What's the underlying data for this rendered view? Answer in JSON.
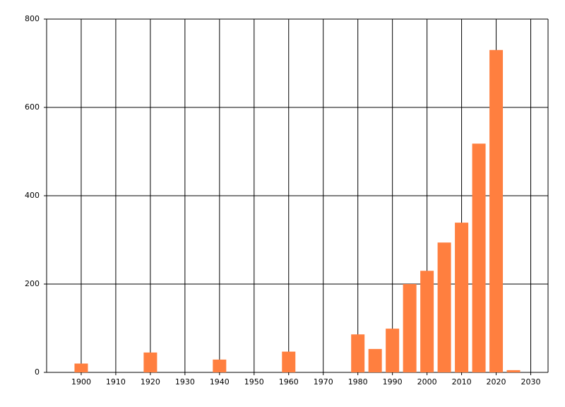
{
  "chart_data": {
    "type": "bar",
    "color": "#ff7f3f",
    "x": [
      1900,
      1920,
      1940,
      1960,
      1980,
      1985,
      1990,
      1995,
      2000,
      2005,
      2010,
      2015,
      2020,
      2025
    ],
    "values": [
      20,
      45,
      29,
      47,
      86,
      53,
      99,
      200,
      230,
      294,
      339,
      518,
      730,
      5
    ],
    "xlim": [
      1890,
      2035
    ],
    "ylim": [
      0,
      800
    ],
    "xticks": [
      1900,
      1910,
      1920,
      1930,
      1940,
      1950,
      1960,
      1970,
      1980,
      1990,
      2000,
      2010,
      2020,
      2030
    ],
    "yticks": [
      0,
      200,
      400,
      600,
      800
    ],
    "grid": true
  }
}
